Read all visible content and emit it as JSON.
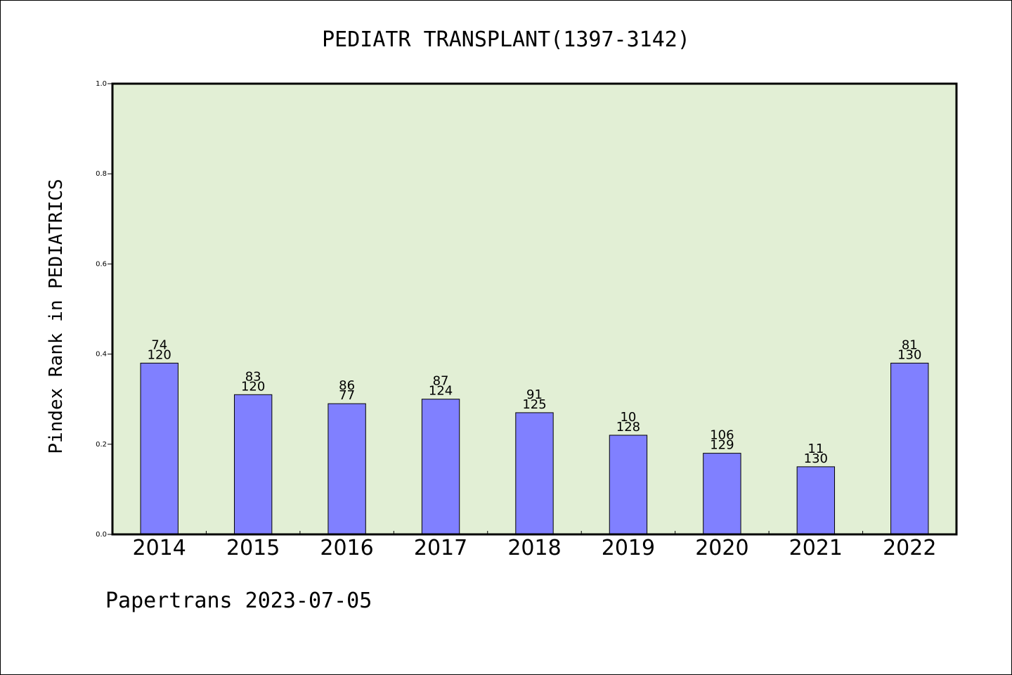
{
  "chart_data": {
    "type": "bar",
    "title": "PEDIATR TRANSPLANT(1397-3142)",
    "ylabel": "Pindex Rank in PEDIATRICS",
    "xlabel": "",
    "ylim": [
      0,
      1.0
    ],
    "yticks": [
      "0.0",
      "0.2",
      "0.4",
      "0.6",
      "0.8",
      "1.0"
    ],
    "grid": false,
    "categories": [
      "2014",
      "2015",
      "2016",
      "2017",
      "2018",
      "2019",
      "2020",
      "2021",
      "2022"
    ],
    "values": [
      0.38,
      0.31,
      0.29,
      0.3,
      0.27,
      0.22,
      0.18,
      0.15,
      0.38
    ],
    "labels_top": [
      "74",
      "83",
      "86",
      "87",
      "91",
      "10",
      "106",
      "11",
      "81"
    ],
    "labels_bottom": [
      "120",
      "120",
      "77",
      "124",
      "125",
      "128",
      "129",
      "130",
      "130"
    ],
    "colors": {
      "plot_bg": "#e2efd5",
      "bar": "#8080ff",
      "axis": "#000000"
    }
  },
  "footer": {
    "text": "Papertrans 2023-07-05"
  }
}
